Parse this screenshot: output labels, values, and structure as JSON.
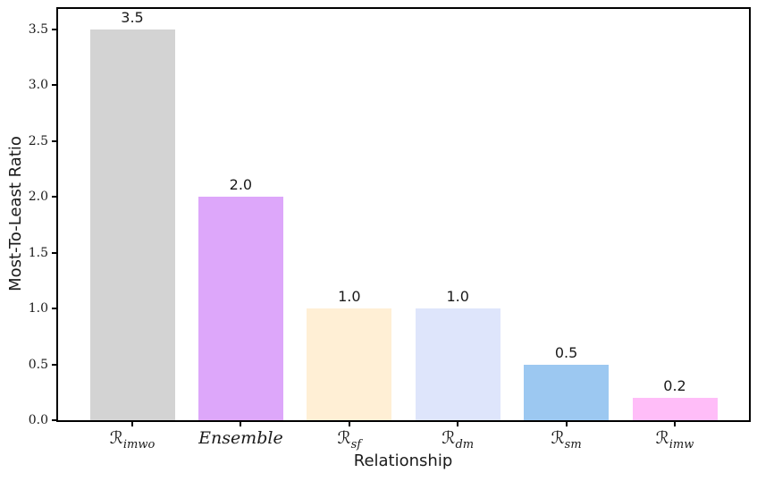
{
  "chart_data": {
    "type": "bar",
    "title": "",
    "xlabel": "Relationship",
    "ylabel": "Most-To-Least Ratio",
    "categories": [
      {
        "base": "ℛ",
        "sub": "imwo"
      },
      {
        "base": "Ensemble",
        "sub": ""
      },
      {
        "base": "ℛ",
        "sub": "sf"
      },
      {
        "base": "ℛ",
        "sub": "dm"
      },
      {
        "base": "ℛ",
        "sub": "sm"
      },
      {
        "base": "ℛ",
        "sub": "imw"
      }
    ],
    "values": [
      3.5,
      2.0,
      1.0,
      1.0,
      0.5,
      0.2
    ],
    "bar_value_labels": [
      "3.5",
      "2.0",
      "1.0",
      "1.0",
      "0.5",
      "0.2"
    ],
    "bar_colors": [
      "#d3d3d3",
      "#dda7fa",
      "#ffefd5",
      "#dee5fb",
      "#9cc8f1",
      "#ffbdf8"
    ],
    "yticks": [
      "0.0",
      "0.5",
      "1.0",
      "1.5",
      "2.0",
      "2.5",
      "3.0",
      "3.5"
    ],
    "ylim": [
      0,
      3.68
    ],
    "grid": false,
    "legend": "none",
    "axis_color": "#000000"
  }
}
